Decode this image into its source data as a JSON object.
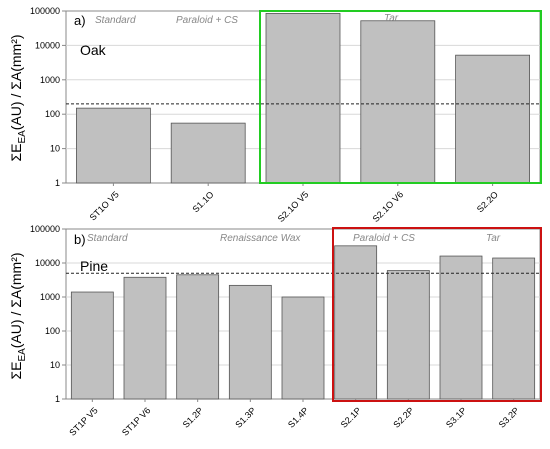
{
  "chart_data": [
    {
      "type": "bar",
      "panel_label": "a)",
      "material_label": "Oak",
      "ylabel": "ΣE_EA(AU) / ΣA(mm²)",
      "yscale": "log",
      "ylim": [
        1,
        100000
      ],
      "yticks": [
        "1",
        "10",
        "100",
        "1000",
        "10000",
        "100000"
      ],
      "threshold": 200,
      "categories": [
        "ST1O V5",
        "S1.1O",
        "S2.1O V5",
        "S2.1O V6",
        "S2.2O"
      ],
      "values": [
        150,
        55,
        85000,
        52000,
        5200
      ],
      "groups": [
        "Standard",
        "Paraloid + CS",
        "Tar"
      ],
      "highlight": {
        "label": "Tar",
        "color": "#22cc22"
      },
      "bar_color": "#c0c0c0"
    },
    {
      "type": "bar",
      "panel_label": "b)",
      "material_label": "Pine",
      "ylabel": "ΣE_EA(AU) / ΣA(mm²)",
      "yscale": "log",
      "ylim": [
        1,
        100000
      ],
      "yticks": [
        "1",
        "10",
        "100",
        "1000",
        "10000",
        "100000"
      ],
      "threshold": 5000,
      "categories": [
        "ST1P V5",
        "ST1P V6",
        "S1.2P",
        "S1.3P",
        "S1.4P",
        "S2.1P",
        "S2.2P",
        "S3.1P",
        "S3.2P"
      ],
      "values": [
        1400,
        3800,
        4500,
        2200,
        1000,
        32000,
        6000,
        16000,
        14000
      ],
      "groups": [
        "Standard",
        "Renaissance Wax",
        "Paraloid + CS",
        "Tar"
      ],
      "highlight": {
        "label": "Paraloid + CS / Tar",
        "color": "#cc1111"
      },
      "bar_color": "#c0c0c0"
    }
  ]
}
